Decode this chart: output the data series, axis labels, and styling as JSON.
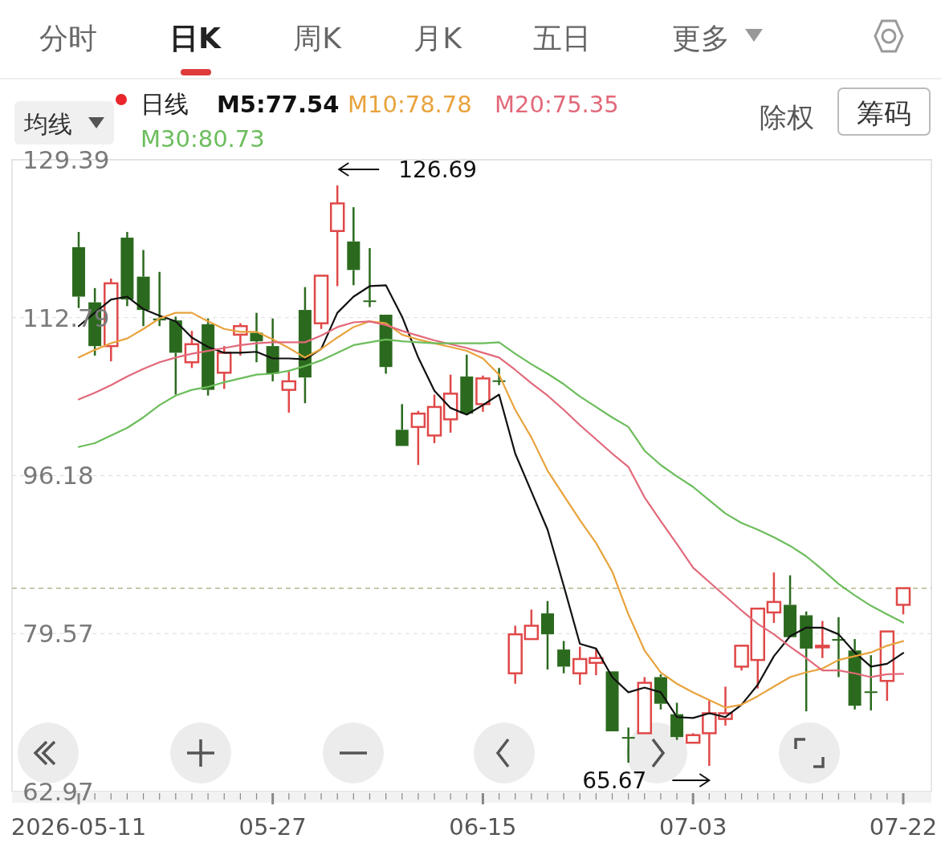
{
  "chart_data": {
    "type": "candlestick",
    "categories": [
      "2026-05-11",
      null,
      null,
      null,
      null,
      null,
      null,
      null,
      null,
      null,
      null,
      null,
      "05-27",
      null,
      null,
      null,
      null,
      null,
      null,
      null,
      null,
      null,
      null,
      null,
      null,
      "06-15",
      null,
      null,
      null,
      null,
      null,
      null,
      null,
      null,
      null,
      null,
      null,
      null,
      "07-03",
      null,
      null,
      null,
      null,
      null,
      null,
      null,
      null,
      null,
      null,
      null,
      null,
      "07-22"
    ],
    "ohlc": [
      [
        120.2,
        121.8,
        113.8,
        115.0
      ],
      [
        114.4,
        115.9,
        108.8,
        109.8
      ],
      [
        109.8,
        116.9,
        108.2,
        116.4
      ],
      [
        121.2,
        121.8,
        114.0,
        114.7
      ],
      [
        117.1,
        119.9,
        111.9,
        113.6
      ],
      [
        112.7,
        117.6,
        111.9,
        112.5
      ],
      [
        112.5,
        112.9,
        104.7,
        109.1
      ],
      [
        108.1,
        111.4,
        107.5,
        110.0
      ],
      [
        112.1,
        112.7,
        104.6,
        105.2
      ],
      [
        107.0,
        109.8,
        105.3,
        109.1
      ],
      [
        111.0,
        112.2,
        108.8,
        111.9
      ],
      [
        111.2,
        113.3,
        108.1,
        110.3
      ],
      [
        109.8,
        112.7,
        106.1,
        106.9
      ],
      [
        105.2,
        107.1,
        102.8,
        106.1
      ],
      [
        113.6,
        116.0,
        103.8,
        106.5
      ],
      [
        112.2,
        117.2,
        111.6,
        117.2
      ],
      [
        121.9,
        126.69,
        116.1,
        124.8
      ],
      [
        120.8,
        124.4,
        116.2,
        117.8
      ],
      [
        114.6,
        120.1,
        113.9,
        114.5
      ],
      [
        113.1,
        113.1,
        106.9,
        107.6
      ],
      [
        101.0,
        103.7,
        99.3,
        99.3
      ],
      [
        101.3,
        103.0,
        97.3,
        102.7
      ],
      [
        100.4,
        104.7,
        99.6,
        103.4
      ],
      [
        102.1,
        106.8,
        100.7,
        104.8
      ],
      [
        106.6,
        108.9,
        102.7,
        102.7
      ],
      [
        103.7,
        106.7,
        102.9,
        106.4
      ],
      [
        106.2,
        107.5,
        105.7,
        106.1
      ],
      [
        75.4,
        80.4,
        74.3,
        79.5
      ],
      [
        79.0,
        82.1,
        79.0,
        80.4
      ],
      [
        81.7,
        83.0,
        75.8,
        79.5
      ],
      [
        77.9,
        78.8,
        75.4,
        76.1
      ],
      [
        75.4,
        78.2,
        74.2,
        76.9
      ],
      [
        76.5,
        77.9,
        75.2,
        77.0
      ],
      [
        75.6,
        75.6,
        69.3,
        69.3
      ],
      [
        68.7,
        69.7,
        66.0,
        68.6
      ],
      [
        69.1,
        75.0,
        69.1,
        74.4
      ],
      [
        75.0,
        75.3,
        71.6,
        72.2
      ],
      [
        71.1,
        72.3,
        68.4,
        68.7
      ],
      [
        68.1,
        69.1,
        68.1,
        68.9
      ],
      [
        69.1,
        72.6,
        65.67,
        71.2
      ],
      [
        70.6,
        74.0,
        69.9,
        71.2
      ],
      [
        76.1,
        78.3,
        75.7,
        78.3
      ],
      [
        76.8,
        82.2,
        73.8,
        82.2
      ],
      [
        81.8,
        86.0,
        80.7,
        82.9
      ],
      [
        82.6,
        85.7,
        79.2,
        79.2
      ],
      [
        81.5,
        81.9,
        71.4,
        78.0
      ],
      [
        78.2,
        80.9,
        77.0,
        78.3
      ],
      [
        79.0,
        81.3,
        75.0,
        78.9
      ],
      [
        77.8,
        79.0,
        71.6,
        72.0
      ],
      [
        73.5,
        77.3,
        71.5,
        73.4
      ],
      [
        74.6,
        79.8,
        72.5,
        79.8
      ],
      [
        82.6,
        84.35,
        81.6,
        84.35
      ]
    ],
    "colors": [
      "#2b6a1e",
      "#2b6a1e",
      "#e04848",
      "#2b6a1e",
      "#2b6a1e",
      "#2b6a1e",
      "#2b6a1e",
      "#e04848",
      "#2b6a1e",
      "#e04848",
      "#e04848",
      "#2b6a1e",
      "#2b6a1e",
      "#e04848",
      "#2b6a1e",
      "#e04848",
      "#e04848",
      "#2b6a1e",
      "#2b6a1e",
      "#2b6a1e",
      "#2b6a1e",
      "#e04848",
      "#e04848",
      "#e04848",
      "#2b6a1e",
      "#e04848",
      "#2b6a1e",
      "#e04848",
      "#e04848",
      "#2b6a1e",
      "#2b6a1e",
      "#e04848",
      "#e04848",
      "#2b6a1e",
      "#2b6a1e",
      "#e04848",
      "#2b6a1e",
      "#2b6a1e",
      "#e04848",
      "#e04848",
      "#e04848",
      "#e04848",
      "#e04848",
      "#e04848",
      "#2b6a1e",
      "#2b6a1e",
      "#e04848",
      "#2b6a1e",
      "#2b6a1e",
      "#2b6a1e",
      "#e04848",
      "#e04848"
    ],
    "series": [
      {
        "name": "M5:77.54",
        "type": "line",
        "color": "#111111",
        "values": [
          111.9,
          113.3,
          114.7,
          115.0,
          113.7,
          113.0,
          112.4,
          110.7,
          109.7,
          109.1,
          109.1,
          109.2,
          108.5,
          108.5,
          108.4,
          109.5,
          113.3,
          115.0,
          116.1,
          116.2,
          112.9,
          108.6,
          105.1,
          103.3,
          102.6,
          103.6,
          104.7,
          98.5,
          94.5,
          90.5,
          84.6,
          78.5,
          78.0,
          75.0,
          73.4,
          73.9,
          73.4,
          70.8,
          70.7,
          71.2,
          70.8,
          72.1,
          74.2,
          77.2,
          79.3,
          80.2,
          80.2,
          79.5,
          77.6,
          76.1,
          76.4,
          77.54
        ]
      },
      {
        "name": "M10:78.78",
        "type": "line",
        "color": "#e8a33d",
        "values": [
          108.6,
          109.4,
          110.1,
          110.6,
          111.6,
          112.7,
          113.3,
          113.3,
          112.4,
          111.6,
          111.3,
          111.3,
          110.5,
          109.6,
          108.6,
          109.5,
          110.7,
          111.8,
          112.4,
          112.2,
          111.0,
          110.5,
          110.1,
          109.7,
          109.3,
          108.5,
          106.8,
          103.1,
          100.2,
          96.7,
          94.1,
          91.5,
          89.1,
          86.1,
          81.6,
          77.8,
          75.5,
          74.3,
          73.4,
          72.6,
          71.8,
          72.1,
          73.0,
          74.0,
          75.0,
          75.5,
          75.9,
          76.8,
          77.2,
          77.6,
          78.3,
          78.78
        ]
      },
      {
        "name": "M20:75.35",
        "type": "line",
        "color": "#e2697a",
        "values": [
          104.2,
          104.9,
          105.7,
          106.6,
          107.4,
          108.1,
          108.6,
          109.0,
          109.3,
          109.6,
          109.9,
          110.1,
          110.2,
          110.2,
          110.2,
          110.9,
          111.8,
          112.3,
          112.4,
          112.0,
          111.4,
          110.9,
          110.4,
          110.0,
          109.6,
          109.1,
          108.6,
          107.3,
          105.9,
          104.6,
          103.1,
          101.5,
          100.0,
          98.5,
          97.1,
          93.9,
          91.4,
          89.0,
          86.5,
          85.0,
          83.5,
          82.0,
          80.6,
          79.5,
          78.2,
          77.0,
          75.7,
          75.7,
          75.4,
          75.0,
          75.3,
          75.35
        ]
      },
      {
        "name": "M30:80.73",
        "type": "line",
        "color": "#6cbd5c",
        "values": [
          99.2,
          99.6,
          100.4,
          101.2,
          102.3,
          103.6,
          104.6,
          105.2,
          105.5,
          106.0,
          106.4,
          106.8,
          106.9,
          107.2,
          107.7,
          108.3,
          109.1,
          109.9,
          110.2,
          110.5,
          110.3,
          110.2,
          110.1,
          110.1,
          110.1,
          110.1,
          110.2,
          109.0,
          107.9,
          106.9,
          105.8,
          104.5,
          103.4,
          102.3,
          101.3,
          98.8,
          97.3,
          96.1,
          95.0,
          93.6,
          92.2,
          91.2,
          90.5,
          89.7,
          88.8,
          87.7,
          86.3,
          84.8,
          83.6,
          82.5,
          81.6,
          80.73
        ]
      }
    ],
    "ylim": [
      62.97,
      129.39
    ],
    "yticks": [
      62.97,
      79.57,
      96.18,
      112.79,
      129.39
    ],
    "grid": "y",
    "legend": "top left",
    "legend_title": "日线",
    "ref_lines": [
      {
        "axis": "y",
        "value": 84.35,
        "color": "#b8b48c",
        "line_style": "dashed"
      }
    ],
    "annotations": [
      "126.69",
      "65.67",
      "分时",
      "日K",
      "周K",
      "月K",
      "五日",
      "更多",
      "均线",
      "除权",
      "筹码"
    ]
  }
}
